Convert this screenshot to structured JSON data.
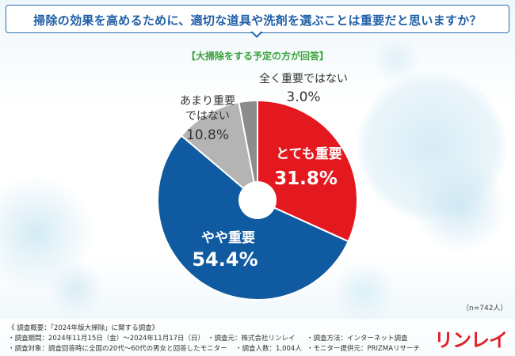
{
  "header": {
    "question": "掃除の効果を高めるために、適切な道具や洗剤を選ぶことは重要だと思いますか？",
    "subtitle": "【大掃除をする予定の方が回答】"
  },
  "chart_data": {
    "type": "pie",
    "style": "donut",
    "series": [
      {
        "name": "とても重要",
        "value": 31.8,
        "label": "31.8%",
        "color": "#e3191f"
      },
      {
        "name": "やや重要",
        "value": 54.4,
        "label": "54.4%",
        "color": "#0f5aa0"
      },
      {
        "name": "あまり重要ではない",
        "value": 10.8,
        "label": "10.8%",
        "color": "#b4b4b4"
      },
      {
        "name": "全く重要ではない",
        "value": 3.0,
        "label": "3.0%",
        "color": "#8c8c8c"
      }
    ],
    "labels": {
      "s0_line1": "とても重要",
      "s1_line1": "やや重要",
      "s2_line1": "あまり重要",
      "s2_line2": "ではない",
      "s3_line1": "全く重要ではない"
    },
    "sample_note": "（n=742人）"
  },
  "footer": {
    "overview": "《 調査概要：「2024年版大掃除」に関する調査》",
    "period": "・調査期間：2024年11月15日（金）～2024年11月17日（日）",
    "source": "・調査元：株式会社リンレイ",
    "method": "・調査方法：インターネット調査",
    "target": "・調査対象：調査回答時に全国の20代～60代の男女と回答したモニター",
    "count": "・調査人数：1,004人",
    "provider": "・モニター提供元：PRIZMAリサーチ"
  },
  "brand": {
    "logo": "リンレイ"
  }
}
